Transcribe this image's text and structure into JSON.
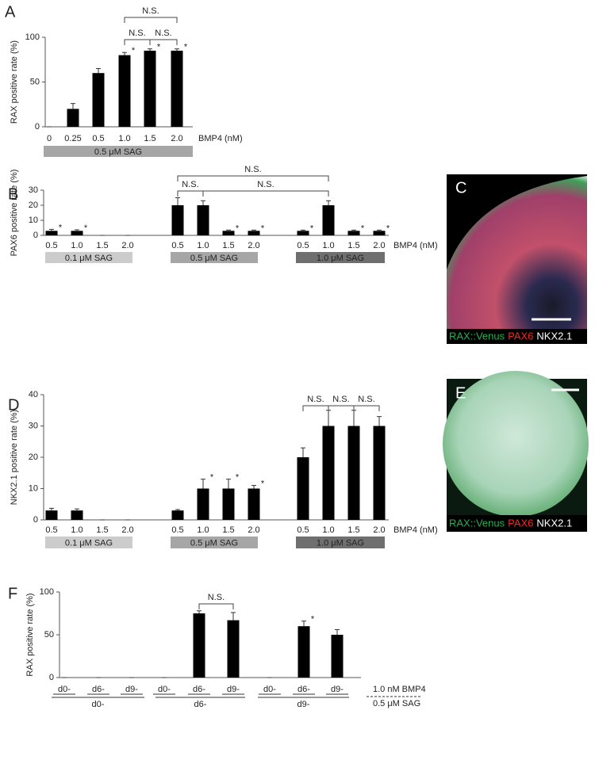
{
  "chart_data": [
    {
      "type": "bar",
      "panel": "A",
      "y_label": "RAX positive rate (%)",
      "x_label": "BMP4 (nM)",
      "categories": [
        "0",
        "0.25",
        "0.5",
        "1.0",
        "1.5",
        "2.0"
      ],
      "values": [
        0,
        20,
        60,
        80,
        85,
        85
      ],
      "errors": [
        0,
        6,
        5,
        3,
        2,
        2
      ],
      "color": "#000000",
      "ylim": [
        0,
        100
      ],
      "yticks": [
        0,
        50,
        100
      ],
      "star": "*",
      "starred": [
        3,
        4,
        5
      ],
      "brackets": [
        {
          "from": 3,
          "to": 4,
          "label": "N.S."
        },
        {
          "from": 4,
          "to": 5,
          "label": "N.S."
        },
        {
          "from": 3,
          "to": 5,
          "label": "N.S."
        }
      ],
      "groups": [
        {
          "label": "0.5 μM SAG",
          "color": "#a6a6a6",
          "start": 0,
          "end": 5
        }
      ]
    },
    {
      "type": "bar",
      "panel": "B",
      "y_label": "PAX6 positive rate (%)",
      "x_label": "BMP4 (nM)",
      "categories": [
        "0.5",
        "1.0",
        "1.5",
        "2.0",
        "0.5",
        "1.0",
        "1.5",
        "2.0",
        "0.5",
        "1.0",
        "1.5",
        "2.0"
      ],
      "values": [
        3,
        3,
        0,
        0,
        20,
        20,
        3,
        3,
        3,
        20,
        3,
        3
      ],
      "errors": [
        1,
        0.7,
        0,
        0,
        5,
        3,
        0.5,
        0.5,
        0.5,
        3,
        0.5,
        0.5
      ],
      "color": "#000000",
      "ylim": [
        0,
        30
      ],
      "yticks": [
        0,
        10,
        20,
        30
      ],
      "star": "*",
      "starred": [
        0,
        1,
        6,
        7,
        8,
        10,
        11
      ],
      "brackets": [
        {
          "from": 4,
          "to": 5,
          "label": "N.S."
        },
        {
          "from": 5,
          "to": 9,
          "label": "N.S."
        },
        {
          "from": 4,
          "to": 9,
          "label": "N.S."
        }
      ],
      "groups": [
        {
          "label": "0.1 μM SAG",
          "color": "#cccccc",
          "start": 0,
          "end": 3
        },
        {
          "label": "0.5 μM SAG",
          "color": "#a6a6a6",
          "start": 4,
          "end": 7
        },
        {
          "label": "1.0 μM SAG",
          "color": "#6f6f6f",
          "start": 8,
          "end": 11
        }
      ]
    },
    {
      "type": "bar",
      "panel": "D",
      "y_label": "NKX2.1 positive rate (%)",
      "x_label": "BMP4 (nM)",
      "categories": [
        "0.5",
        "1.0",
        "1.5",
        "2.0",
        "0.5",
        "1.0",
        "1.5",
        "2.0",
        "0.5",
        "1.0",
        "1.5",
        "2.0"
      ],
      "values": [
        3,
        3,
        0,
        0,
        3,
        10,
        10,
        10,
        20,
        30,
        30,
        30
      ],
      "errors": [
        0.7,
        0.5,
        0,
        0,
        0.3,
        3,
        3,
        1,
        3,
        5,
        5,
        3
      ],
      "color": "#000000",
      "ylim": [
        0,
        40
      ],
      "yticks": [
        0,
        10,
        20,
        30,
        40
      ],
      "star": "*",
      "starred": [
        5,
        6,
        7
      ],
      "brackets": [
        {
          "from": 8,
          "to": 9,
          "label": "N.S."
        },
        {
          "from": 9,
          "to": 10,
          "label": "N.S."
        },
        {
          "from": 10,
          "to": 11,
          "label": "N.S."
        }
      ],
      "groups": [
        {
          "label": "0.1 μM SAG",
          "color": "#cccccc",
          "start": 0,
          "end": 3
        },
        {
          "label": "0.5 μM SAG",
          "color": "#a6a6a6",
          "start": 4,
          "end": 7
        },
        {
          "label": "1.0 μM SAG",
          "color": "#6f6f6f",
          "start": 8,
          "end": 11
        }
      ]
    },
    {
      "type": "bar",
      "panel": "F",
      "y_label": "RAX positive rate (%)",
      "categories": [
        "d0-",
        "d6-",
        "d9-",
        "d0-",
        "d6-",
        "d9-",
        "d0-",
        "d6-",
        "d9-"
      ],
      "values": [
        0,
        0,
        0,
        0,
        75,
        67,
        0,
        60,
        50
      ],
      "errors": [
        0,
        0,
        0,
        0,
        3,
        9,
        0,
        6,
        6
      ],
      "color": "#000000",
      "ylim": [
        0,
        100
      ],
      "yticks": [
        0,
        50,
        100
      ],
      "star": "*",
      "starred": [
        7
      ],
      "brackets": [
        {
          "from": 4,
          "to": 5,
          "label": "N.S."
        }
      ],
      "groups": [
        {
          "label": "d0-",
          "start": 0,
          "end": 2
        },
        {
          "label": "d6-",
          "start": 3,
          "end": 5
        },
        {
          "label": "d9-",
          "start": 6,
          "end": 8
        }
      ],
      "condition_labels": [
        "1.0 nM BMP4",
        "0.5 μM SAG"
      ]
    }
  ],
  "images": [
    {
      "panel": "C",
      "labels": [
        {
          "text": "RAX::Venus",
          "color": "#22b14c"
        },
        {
          "text": "PAX6",
          "color": "#ff2020"
        },
        {
          "text": "NKX2.1",
          "color": "#ffffff"
        }
      ]
    },
    {
      "panel": "E",
      "labels": [
        {
          "text": "RAX::Venus",
          "color": "#22b14c"
        },
        {
          "text": "PAX6",
          "color": "#ff2020"
        },
        {
          "text": "NKX2.1",
          "color": "#ffffff"
        }
      ]
    }
  ]
}
